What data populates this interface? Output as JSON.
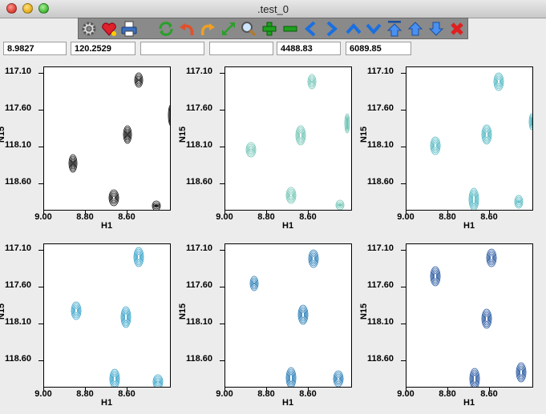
{
  "window": {
    "title": ".test_0"
  },
  "toolbar": {
    "buttons": [
      {
        "name": "settings-button",
        "icon": "gear-icon"
      },
      {
        "name": "favorite-button",
        "icon": "heart-icon"
      },
      {
        "name": "print-button",
        "icon": "printer-icon"
      },
      {
        "name": "refresh-button",
        "icon": "refresh-icon"
      },
      {
        "name": "undo-button",
        "icon": "undo-icon"
      },
      {
        "name": "redo-button",
        "icon": "redo-icon"
      },
      {
        "name": "fit-button",
        "icon": "expand-icon"
      },
      {
        "name": "zoom-button",
        "icon": "magnifier-icon"
      },
      {
        "name": "zoom-in-button",
        "icon": "plus-icon"
      },
      {
        "name": "zoom-out-button",
        "icon": "minus-icon"
      },
      {
        "name": "pan-left-button",
        "icon": "chevron-left-icon"
      },
      {
        "name": "pan-right-button",
        "icon": "chevron-right-icon"
      },
      {
        "name": "pan-up-button",
        "icon": "chevron-up-icon"
      },
      {
        "name": "pan-down-button",
        "icon": "chevron-down-icon"
      },
      {
        "name": "contour-up-top-button",
        "icon": "arrow-up-bar-icon"
      },
      {
        "name": "contour-up-button",
        "icon": "arrow-up-icon"
      },
      {
        "name": "contour-down-button",
        "icon": "arrow-down-icon"
      },
      {
        "name": "close-button",
        "icon": "close-x-icon"
      }
    ]
  },
  "fields": [
    "8.9827",
    "120.2529",
    "",
    "",
    "4488.83",
    "6089.85"
  ],
  "axes": {
    "ylabels": [
      "117.10",
      "117.60",
      "118.10",
      "118.60"
    ],
    "xlabels": [
      "9.00",
      "8.80",
      "8.60"
    ],
    "xtitle": "H1",
    "ytitle": "N15"
  },
  "panels": [
    {
      "color": "#000000"
    },
    {
      "color": "#6cc3b3"
    },
    {
      "color": "#4ab5c0"
    },
    {
      "color": "#2fa0c8"
    },
    {
      "color": "#1f78b4"
    },
    {
      "color": "#1c4f9c"
    }
  ]
}
